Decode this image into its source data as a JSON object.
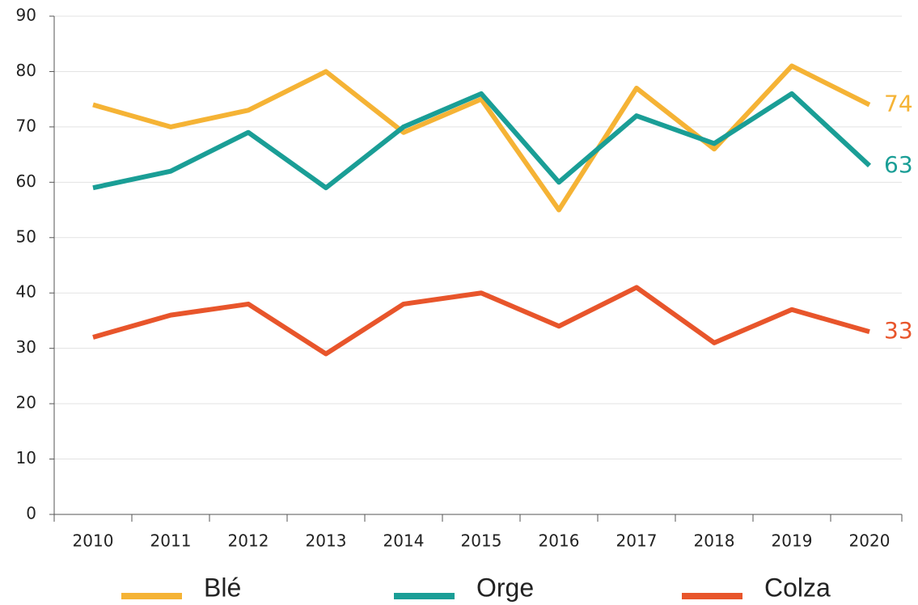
{
  "chart_data": {
    "type": "line",
    "categories": [
      "2010",
      "2011",
      "2012",
      "2013",
      "2014",
      "2015",
      "2016",
      "2017",
      "2018",
      "2019",
      "2020"
    ],
    "series": [
      {
        "name": "Blé",
        "color": "#f5b335",
        "values": [
          74,
          70,
          73,
          80,
          69,
          75,
          55,
          77,
          66,
          81,
          74
        ]
      },
      {
        "name": "Orge",
        "color": "#1a9e96",
        "values": [
          59,
          62,
          69,
          59,
          70,
          76,
          60,
          72,
          67,
          76,
          63
        ]
      },
      {
        "name": "Colza",
        "color": "#e8552b",
        "values": [
          32,
          36,
          38,
          29,
          38,
          40,
          34,
          41,
          31,
          37,
          33
        ]
      }
    ],
    "ylim": [
      0,
      90
    ],
    "yticks": [
      0,
      10,
      20,
      30,
      40,
      50,
      60,
      70,
      80,
      90
    ],
    "grid": true,
    "legend": "bottom"
  }
}
